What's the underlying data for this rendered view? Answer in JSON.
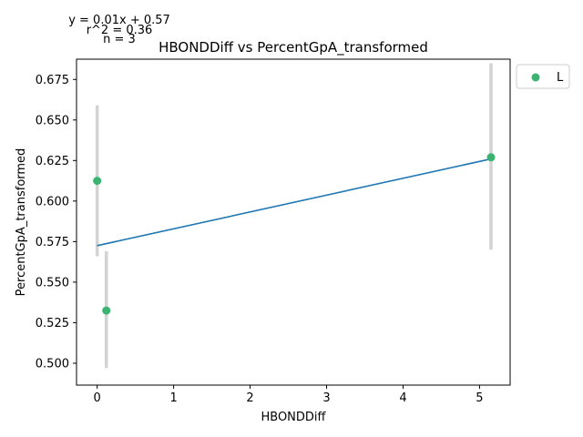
{
  "chart_data": {
    "type": "scatter",
    "title": "HBONDDiff vs PercentGpA_transformed",
    "xlabel": "HBONDDiff",
    "ylabel": "PercentGpA_transformed",
    "xlim": [
      -0.27,
      5.4
    ],
    "ylim": [
      0.4865,
      0.6875
    ],
    "xticks": [
      0,
      1,
      2,
      3,
      4,
      5
    ],
    "yticks": [
      0.5,
      0.525,
      0.55,
      0.575,
      0.6,
      0.625,
      0.65,
      0.675
    ],
    "grid": false,
    "legend_position": "outside-top-right",
    "series": [
      {
        "name": "L",
        "color": "#3cb371",
        "points": [
          {
            "x": 0.0,
            "y": 0.6125,
            "err_low": 0.566,
            "err_high": 0.659
          },
          {
            "x": 0.12,
            "y": 0.5325,
            "err_low": 0.497,
            "err_high": 0.569
          },
          {
            "x": 5.15,
            "y": 0.627,
            "err_low": 0.57,
            "err_high": 0.685
          }
        ]
      }
    ],
    "fit_line": {
      "color": "#1f77b4",
      "x": [
        0.0,
        5.15
      ],
      "y": [
        0.5725,
        0.626
      ]
    },
    "error_bar_color": "#d3d3d3",
    "annotations": [
      "y = 0.01x + 0.57",
      "r^2 = 0.36",
      "n = 3"
    ]
  }
}
